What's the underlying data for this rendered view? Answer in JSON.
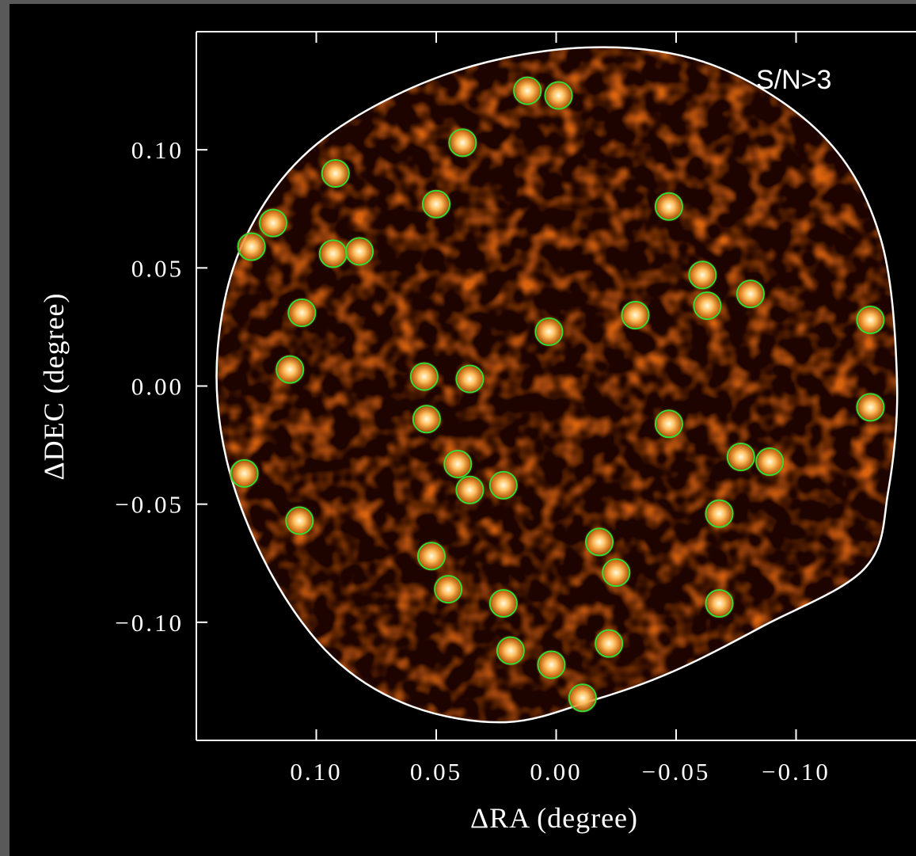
{
  "chart_data": {
    "type": "scatter",
    "annotation": "S/N>3",
    "x_label": "ΔRA (degree)",
    "y_label": "ΔDEC (degree)",
    "color": "#33dd33",
    "xlim": [
      0.15,
      -0.15
    ],
    "ylim": [
      -0.15,
      0.15
    ],
    "xticks": [
      {
        "value": 0.1,
        "label": "0.10"
      },
      {
        "value": 0.05,
        "label": "0.05"
      },
      {
        "value": 0,
        "label": "0.00"
      },
      {
        "value": -0.05,
        "label": "−0.05"
      },
      {
        "value": -0.1,
        "label": "−0.10"
      }
    ],
    "yticks": [
      {
        "value": 0.1,
        "label": "0.10"
      },
      {
        "value": 0.05,
        "label": "0.05"
      },
      {
        "value": 0,
        "label": "0.00"
      },
      {
        "value": -0.05,
        "label": "−0.05"
      },
      {
        "value": -0.1,
        "label": "−0.10"
      }
    ],
    "x": [
      0.012,
      -0.001,
      0.039,
      0.092,
      0.05,
      -0.047,
      0.118,
      0.127,
      0.093,
      0.082,
      -0.061,
      -0.081,
      -0.063,
      0.106,
      -0.033,
      0.003,
      -0.131,
      0.111,
      0.055,
      0.036,
      -0.131,
      0.054,
      -0.047,
      -0.077,
      -0.089,
      0.041,
      0.13,
      0.036,
      0.022,
      -0.068,
      0.107,
      0.052,
      -0.018,
      -0.025,
      0.045,
      0.022,
      -0.068,
      -0.022,
      0.019,
      0.002,
      -0.011
    ],
    "values": [
      0.125,
      0.123,
      0.103,
      0.09,
      0.077,
      0.076,
      0.069,
      0.059,
      0.056,
      0.057,
      0.047,
      0.039,
      0.034,
      0.031,
      0.03,
      0.023,
      0.028,
      0.007,
      0.004,
      0.003,
      -0.009,
      -0.014,
      -0.016,
      -0.03,
      -0.032,
      -0.033,
      -0.037,
      -0.044,
      -0.042,
      -0.054,
      -0.057,
      -0.072,
      -0.066,
      -0.079,
      -0.086,
      -0.092,
      -0.092,
      -0.109,
      -0.112,
      -0.118,
      -0.132
    ]
  }
}
